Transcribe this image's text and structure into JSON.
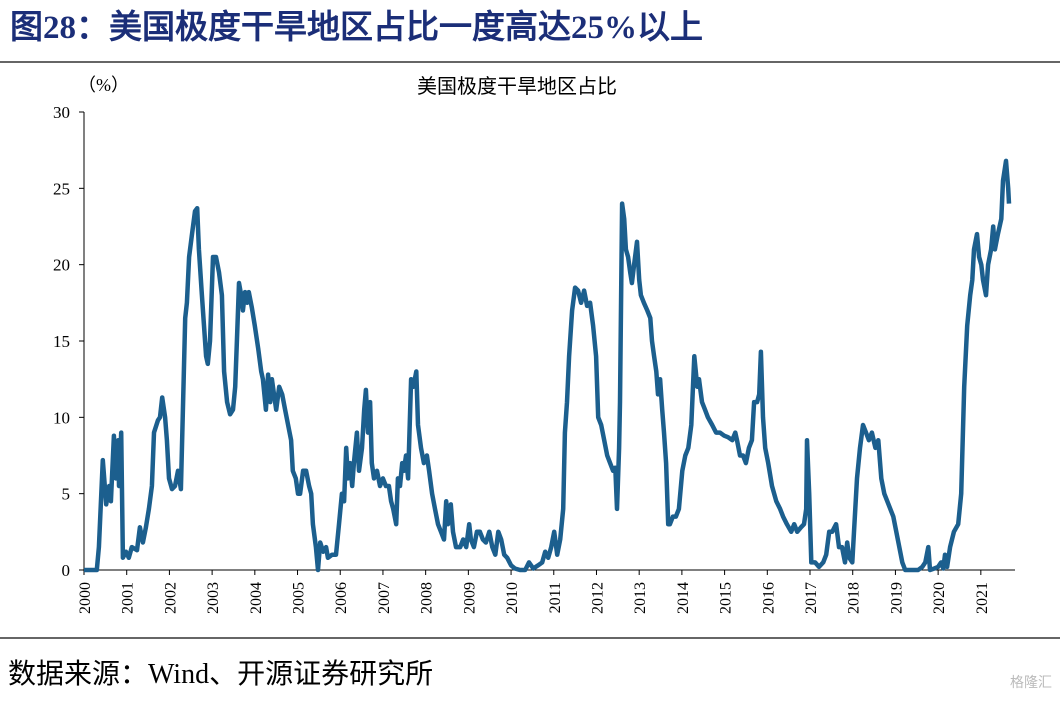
{
  "figure_title": "图28：美国极度干旱地区占比一度高达25%以上",
  "source": "数据来源：Wind、开源证券研究所",
  "watermark": "格隆汇",
  "chart_data": {
    "type": "line",
    "title": "美国极度干旱地区占比",
    "y_label": "（%）",
    "color": "#1c5f8e",
    "xlim": [
      2000,
      2021.8
    ],
    "xticks": [
      2000,
      2001,
      2002,
      2003,
      2004,
      2005,
      2006,
      2007,
      2008,
      2009,
      2010,
      2011,
      2012,
      2013,
      2014,
      2015,
      2016,
      2017,
      2018,
      2019,
      2020,
      2021
    ],
    "ylim": [
      0,
      30
    ],
    "yticks": [
      0,
      5,
      10,
      15,
      20,
      25,
      30
    ],
    "grid": false,
    "x": [
      2000.0,
      2000.3,
      2000.35,
      2000.44,
      2000.52,
      2000.59,
      2000.63,
      2000.7,
      2000.75,
      2000.8,
      2000.82,
      2000.87,
      2000.91,
      2000.98,
      2001.05,
      2001.12,
      2001.24,
      2001.31,
      2001.38,
      2001.45,
      2001.52,
      2001.59,
      2001.64,
      2001.73,
      2001.78,
      2001.83,
      2001.9,
      2001.94,
      2001.99,
      2002.06,
      2002.13,
      2002.2,
      2002.27,
      2002.32,
      2002.37,
      2002.41,
      2002.46,
      2002.53,
      2002.6,
      2002.65,
      2002.69,
      2002.76,
      2002.81,
      2002.86,
      2002.9,
      2002.95,
      2003.02,
      2003.09,
      2003.16,
      2003.23,
      2003.28,
      2003.35,
      2003.42,
      2003.49,
      2003.54,
      2003.58,
      2003.63,
      2003.68,
      2003.72,
      2003.77,
      2003.82,
      2003.86,
      2003.93,
      2004.0,
      2004.08,
      2004.15,
      2004.19,
      2004.26,
      2004.31,
      2004.36,
      2004.4,
      2004.45,
      2004.5,
      2004.57,
      2004.64,
      2004.71,
      2004.78,
      2004.85,
      2004.89,
      2004.96,
      2005.01,
      2005.06,
      2005.13,
      2005.2,
      2005.27,
      2005.32,
      2005.36,
      2005.43,
      2005.48,
      2005.53,
      2005.6,
      2005.67,
      2005.71,
      2005.81,
      2005.9,
      2005.97,
      2006.04,
      2006.09,
      2006.14,
      2006.18,
      2006.23,
      2006.28,
      2006.32,
      2006.39,
      2006.44,
      2006.51,
      2006.56,
      2006.6,
      2006.65,
      2006.7,
      2006.74,
      2006.79,
      2006.86,
      2006.93,
      2007.0,
      2007.07,
      2007.14,
      2007.19,
      2007.24,
      2007.31,
      2007.35,
      2007.4,
      2007.45,
      2007.49,
      2007.54,
      2007.59,
      2007.66,
      2007.71,
      2007.78,
      2007.82,
      2007.89,
      2007.96,
      2008.03,
      2008.08,
      2008.15,
      2008.22,
      2008.29,
      2008.36,
      2008.43,
      2008.48,
      2008.52,
      2008.59,
      2008.64,
      2008.71,
      2008.81,
      2008.88,
      2008.95,
      2009.02,
      2009.06,
      2009.13,
      2009.2,
      2009.27,
      2009.34,
      2009.41,
      2009.49,
      2009.56,
      2009.63,
      2009.7,
      2009.77,
      2009.84,
      2009.91,
      2010.0,
      2010.09,
      2010.21,
      2010.33,
      2010.42,
      2010.52,
      2010.63,
      2010.73,
      2010.8,
      2010.87,
      2010.94,
      2011.01,
      2011.08,
      2011.15,
      2011.22,
      2011.26,
      2011.31,
      2011.36,
      2011.43,
      2011.5,
      2011.57,
      2011.64,
      2011.71,
      2011.78,
      2011.85,
      2011.92,
      2011.99,
      2012.04,
      2012.11,
      2012.18,
      2012.25,
      2012.32,
      2012.39,
      2012.44,
      2012.48,
      2012.53,
      2012.55,
      2012.6,
      2012.65,
      2012.69,
      2012.74,
      2012.79,
      2012.83,
      2012.88,
      2012.95,
      2013.0,
      2013.04,
      2013.11,
      2013.19,
      2013.26,
      2013.3,
      2013.35,
      2013.4,
      2013.44,
      2013.49,
      2013.54,
      2013.58,
      2013.63,
      2013.68,
      2013.72,
      2013.79,
      2013.86,
      2013.93,
      2014.01,
      2014.08,
      2014.15,
      2014.22,
      2014.29,
      2014.36,
      2014.4,
      2014.47,
      2014.54,
      2014.61,
      2014.71,
      2014.8,
      2014.89,
      2014.99,
      2015.08,
      2015.18,
      2015.25,
      2015.29,
      2015.36,
      2015.43,
      2015.5,
      2015.57,
      2015.64,
      2015.69,
      2015.76,
      2015.81,
      2015.85,
      2015.9,
      2015.95,
      2016.02,
      2016.11,
      2016.21,
      2016.3,
      2016.37,
      2016.46,
      2016.56,
      2016.63,
      2016.7,
      2016.79,
      2016.86,
      2016.91,
      2016.93,
      2016.98,
      2017.03,
      2017.12,
      2017.21,
      2017.31,
      2017.38,
      2017.45,
      2017.52,
      2017.61,
      2017.68,
      2017.75,
      2017.82,
      2017.87,
      2017.92,
      2017.99,
      2018.03,
      2018.1,
      2018.17,
      2018.24,
      2018.31,
      2018.38,
      2018.45,
      2018.53,
      2018.6,
      2018.67,
      2018.74,
      2018.81,
      2018.88,
      2018.95,
      2019.02,
      2019.09,
      2019.16,
      2019.23,
      2019.39,
      2019.53,
      2019.63,
      2019.7,
      2019.77,
      2019.81,
      2019.91,
      2020.0,
      2020.07,
      2020.12,
      2020.16,
      2020.21,
      2020.28,
      2020.37,
      2020.47,
      2020.54,
      2020.61,
      2020.68,
      2020.75,
      2020.8,
      2020.84,
      2020.91,
      2020.96,
      2021.01,
      2021.05,
      2021.12,
      2021.17,
      2021.24,
      2021.29,
      2021.33,
      2021.4,
      2021.48,
      2021.52,
      2021.59,
      2021.64,
      2021.66
    ],
    "values": [
      0,
      0,
      1.5,
      7.2,
      4.3,
      5.5,
      4.5,
      8.8,
      6,
      8.5,
      5.5,
      9,
      0.8,
      1.2,
      0.8,
      1.5,
      1.3,
      2.8,
      1.8,
      2.8,
      4,
      5.5,
      9,
      9.8,
      10,
      11.3,
      10,
      8.5,
      6,
      5.3,
      5.5,
      6.5,
      5.3,
      11,
      16.5,
      17.5,
      20.5,
      22,
      23.5,
      23.7,
      21,
      18,
      16,
      14,
      13.5,
      15,
      20.5,
      20.5,
      19.5,
      18,
      13,
      11,
      10.2,
      10.5,
      12,
      15,
      18.8,
      18,
      17,
      18.2,
      17.5,
      18.2,
      17.2,
      16,
      14.5,
      13,
      12.5,
      10.5,
      12.8,
      11,
      12.5,
      11.5,
      10.5,
      12,
      11.5,
      10.5,
      9.5,
      8.5,
      6.5,
      6,
      5,
      5,
      6.5,
      6.5,
      5.5,
      5,
      3,
      1.5,
      0,
      1.8,
      1.2,
      1.5,
      0.8,
      1,
      1,
      3,
      5,
      4.5,
      8,
      6,
      7,
      5.5,
      7,
      9,
      6.5,
      8,
      10.5,
      11.8,
      9,
      11,
      7,
      6,
      6.5,
      5.5,
      6,
      5.5,
      5.5,
      4.5,
      4,
      3,
      6,
      5.5,
      7,
      6.5,
      7.5,
      6,
      12.5,
      12,
      13,
      9.5,
      8,
      7,
      7.5,
      6.5,
      5,
      4,
      3,
      2.5,
      2,
      4.5,
      3,
      4.3,
      2.5,
      1.5,
      1.5,
      2,
      1.5,
      3,
      2,
      1.5,
      2.5,
      2.5,
      2,
      1.8,
      2.5,
      1.5,
      1,
      2.5,
      2,
      1,
      0.8,
      0.3,
      0.1,
      0,
      0,
      0.5,
      0.1,
      0.3,
      0.5,
      1.2,
      0.8,
      1.5,
      2.5,
      1,
      2,
      4,
      9,
      11,
      14,
      17,
      18.5,
      18.3,
      17.5,
      18.3,
      17.3,
      17.5,
      16,
      14,
      10,
      9.5,
      8.5,
      7.5,
      7,
      6.5,
      6.7,
      4,
      8,
      11,
      24,
      23,
      21,
      20.5,
      19.5,
      18.8,
      20,
      21.5,
      19,
      18,
      17.5,
      17,
      16.5,
      15,
      14,
      13,
      11.5,
      12.5,
      10.5,
      9,
      7,
      3,
      3,
      3.5,
      3.5,
      4,
      6.5,
      7.5,
      8,
      9.5,
      14,
      12,
      12.5,
      11,
      10.5,
      10,
      9.5,
      9,
      9,
      8.8,
      8.7,
      8.5,
      9,
      8.5,
      7.5,
      7.5,
      7,
      8,
      8.5,
      11,
      11,
      11.5,
      14.3,
      10,
      8,
      7,
      5.5,
      4.5,
      4,
      3.5,
      3,
      2.5,
      3,
      2.5,
      2.8,
      3,
      4,
      8.5,
      5,
      0.5,
      0.5,
      0.2,
      0.5,
      1,
      2.5,
      2.5,
      3,
      1.5,
      1.5,
      0.5,
      1.8,
      0.8,
      0.5,
      2.5,
      6,
      8,
      9.5,
      9,
      8.5,
      9,
      8,
      8.5,
      6,
      5,
      4.5,
      4,
      3.5,
      2.5,
      1.5,
      0.5,
      0,
      0,
      0,
      0.2,
      0.5,
      1.5,
      0,
      0.1,
      0.2,
      0.5,
      0.1,
      1,
      0.2,
      1.5,
      2.5,
      3,
      5,
      12,
      16,
      18,
      19,
      21,
      22,
      20.5,
      20,
      19,
      18,
      20,
      21,
      22.5,
      21,
      22,
      23,
      25.5,
      26.8,
      25,
      24
    ]
  }
}
